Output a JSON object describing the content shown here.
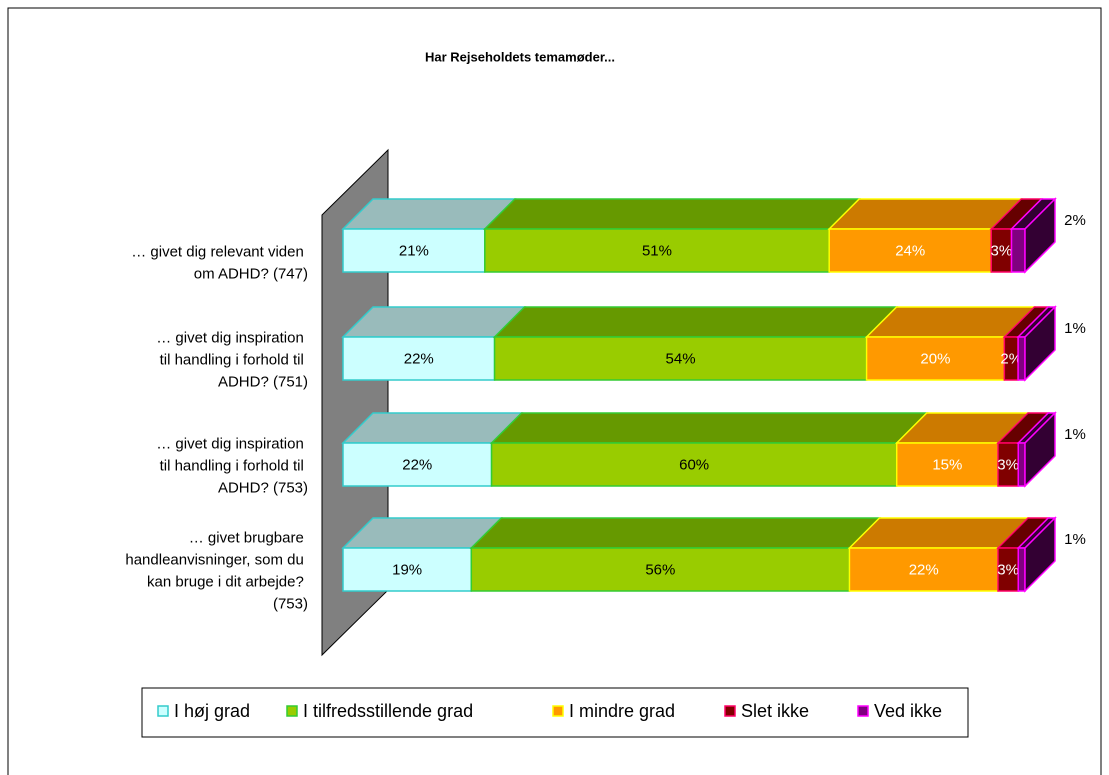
{
  "chart_data": {
    "type": "bar3d_stacked_horizontal",
    "title": "Har Rejseholdets temamøder...",
    "categories": [
      "… givet dig relevant viden om ADHD? (747)",
      "… givet dig inspiration til handling i forhold til ADHD? (751)",
      "… givet dig inspiration til handling i forhold til ADHD? (753)",
      "… givet brugbare handleanvisninger, som du kan bruge i dit arbejde? (753)"
    ],
    "series": [
      {
        "name": "I høj grad",
        "color": "#ccffff",
        "values": [
          21,
          22,
          22,
          19
        ],
        "value_labels": [
          "21%",
          "22%",
          "22%",
          "19%"
        ]
      },
      {
        "name": "I tilfredsstillende grad",
        "color": "#99cc00",
        "values": [
          51,
          54,
          60,
          56
        ],
        "value_labels": [
          "51%",
          "54%",
          "60%",
          "56%"
        ]
      },
      {
        "name": "I mindre grad",
        "color": "#ff9900",
        "values": [
          24,
          20,
          15,
          22
        ],
        "value_labels": [
          "24%",
          "20%",
          "15%",
          "22%"
        ]
      },
      {
        "name": "Slet ikke",
        "color": "#800000",
        "values": [
          3,
          2,
          3,
          3
        ],
        "value_labels": [
          "3%",
          "2%",
          "3%",
          "3%"
        ]
      },
      {
        "name": "Ved ikke",
        "color": "#800080",
        "values": [
          2,
          1,
          1,
          1
        ],
        "value_labels": [
          "2%",
          "1%",
          "1%",
          "1%"
        ]
      }
    ],
    "legend": "bottom"
  }
}
